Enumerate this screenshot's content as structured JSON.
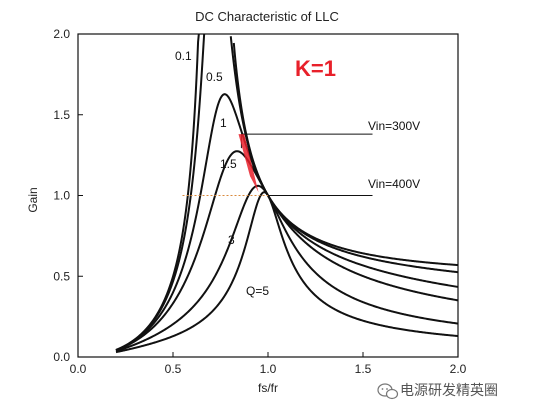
{
  "chart_data": {
    "type": "line",
    "title": "DC Characteristic of LLC",
    "xlabel": "fs/fr",
    "ylabel": "Gain",
    "xlim": [
      0.0,
      2.0
    ],
    "ylim": [
      0.0,
      2.0
    ],
    "xticks": [
      "0.0",
      "0.5",
      "1.0",
      "1.5",
      "2.0"
    ],
    "yticks": [
      "0.0",
      "0.5",
      "1.0",
      "1.5",
      "2.0"
    ],
    "grid": false,
    "K": 1,
    "series": [
      {
        "name": "0.1",
        "Q": 0.1
      },
      {
        "name": "0.5",
        "Q": 0.5
      },
      {
        "name": "1",
        "Q": 1
      },
      {
        "name": "1.5",
        "Q": 1.5
      },
      {
        "name": "3",
        "Q": 3
      },
      {
        "name": "Q=5",
        "Q": 5
      }
    ],
    "annotations": [
      {
        "text": "K=1",
        "color": "#e8202a"
      },
      {
        "text": "Vin=300V",
        "y": 1.38
      },
      {
        "text": "Vin=400V",
        "y": 1.0
      }
    ],
    "highlight_color": "#e8202a",
    "guide_color": "#d98a3c"
  },
  "watermark": {
    "text": "电源研发精英圈",
    "icon": "wechat-logo-icon"
  }
}
